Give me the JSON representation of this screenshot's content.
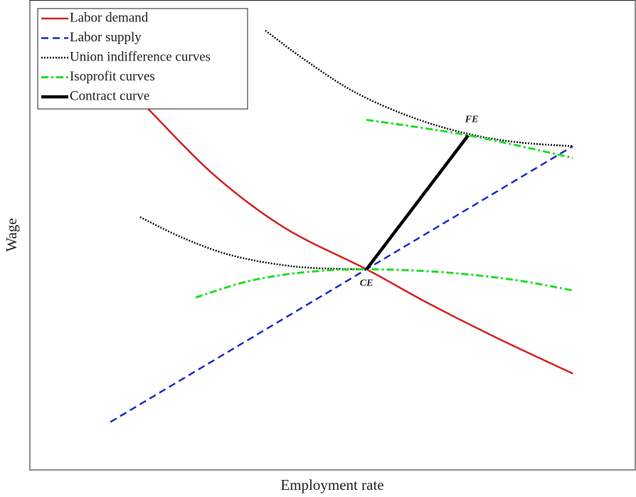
{
  "chart_data": {
    "type": "line",
    "x_label": "Employment rate",
    "y_label": "Wage",
    "xlim": [
      0,
      100
    ],
    "ylim": [
      0,
      100
    ],
    "legend": "upper left",
    "series": [
      {
        "name": "Labor demand",
        "color": "#d42222",
        "dash": "solid",
        "x": [
          19.2,
          30.3,
          42.1,
          55.6,
          65.6,
          77.3,
          89.7
        ],
        "values": [
          77.3,
          62.9,
          51.5,
          42.7,
          35.6,
          28.0,
          20.5
        ]
      },
      {
        "name": "Labor supply",
        "color": "#1c2ccc",
        "dash": "dashed",
        "x": [
          13.3,
          89.7
        ],
        "values": [
          10.2,
          68.9
        ]
      },
      {
        "name": "Union indifference curves",
        "color": "#111111",
        "dash": "dotted",
        "x": [
          38.9,
          45.6,
          53.8,
          63.2,
          72.4,
          80.8,
          89.7,
          null,
          18.2,
          25.6,
          33.8,
          44.4,
          55.6
        ],
        "values": [
          93.5,
          87.1,
          80.3,
          75.0,
          71.5,
          69.7,
          68.9,
          null,
          53.8,
          49.2,
          45.5,
          43.2,
          42.7
        ]
      },
      {
        "name": "Isoprofit curves",
        "color": "#22dd22",
        "dash": "dashdot",
        "x": [
          55.6,
          72.4,
          89.7,
          null,
          27.4,
          36.2,
          45.6,
          55.6,
          67.9,
          79.7,
          89.7
        ],
        "values": [
          74.5,
          71.2,
          66.4,
          null,
          36.7,
          40.2,
          42.1,
          42.7,
          42.1,
          40.5,
          38.2
        ]
      },
      {
        "name": "Contract curve",
        "color": "#000000",
        "dash": "solid-thick",
        "x": [
          55.6,
          72.4
        ],
        "values": [
          42.7,
          71.2
        ]
      }
    ],
    "annotations": [
      {
        "text": "FE",
        "x": 72.4,
        "y": 71.2
      },
      {
        "text": "CE",
        "x": 55.6,
        "y": 42.7
      }
    ]
  }
}
